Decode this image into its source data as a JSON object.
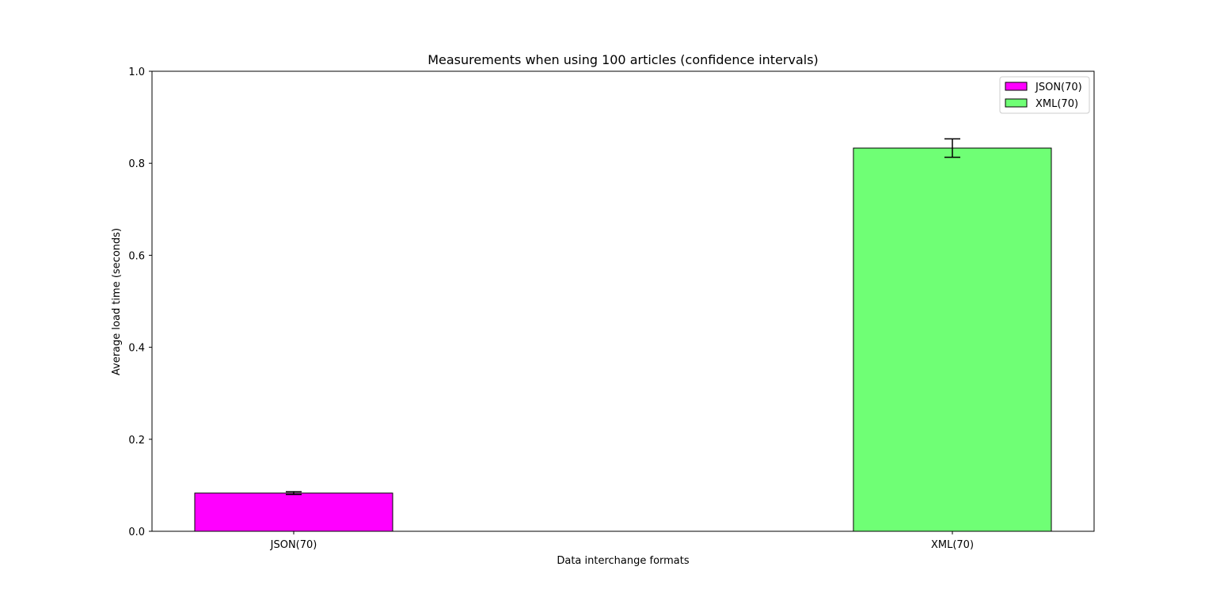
{
  "chart_data": {
    "type": "bar",
    "title": "Measurements when using 100 articles (confidence intervals)",
    "xlabel": "Data interchange formats",
    "ylabel": "Average load time (seconds)",
    "ylim": [
      0,
      1.0
    ],
    "yticks": [
      "0.0",
      "0.2",
      "0.4",
      "0.6",
      "0.8",
      "1.0"
    ],
    "categories": [
      "JSON(70)",
      "XML(70)"
    ],
    "series": [
      {
        "name": "JSON(70)",
        "category_index": 0,
        "value": 0.083,
        "error": 0.003,
        "color": "#ff00ff"
      },
      {
        "name": "XML(70)",
        "category_index": 1,
        "value": 0.833,
        "error": 0.02,
        "color": "#6fff75"
      }
    ],
    "grid": false,
    "legend_position": "top-right"
  }
}
